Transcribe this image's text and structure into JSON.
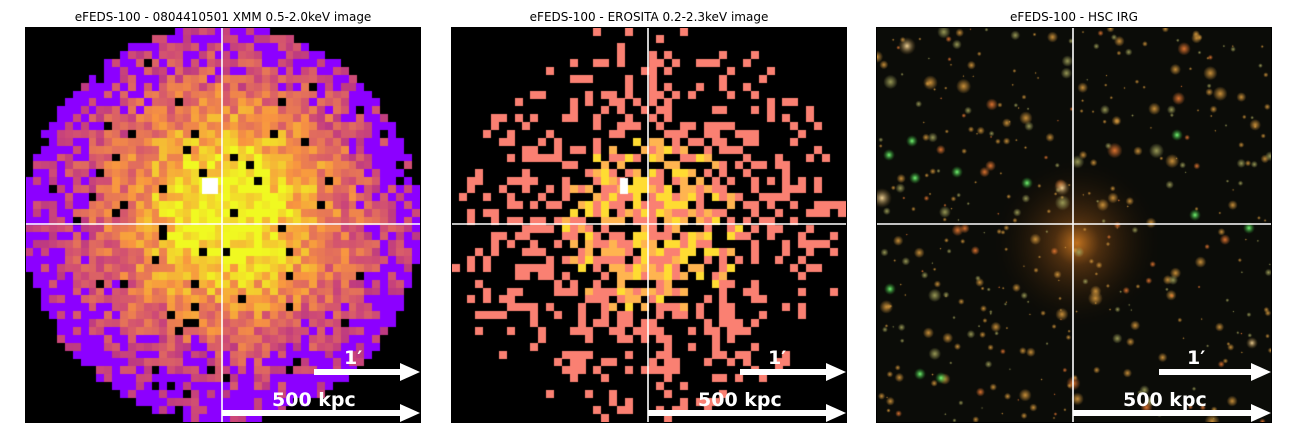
{
  "panels": [
    {
      "title": "eFEDS-100 - 0804410501 XMM 0.5-2.0keV image",
      "scale_angle": "1′",
      "scale_distance": "500 kpc",
      "image": "xmm"
    },
    {
      "title": "eFEDS-100 -  EROSITA 0.2-2.3keV image",
      "scale_angle": "1′",
      "scale_distance": "500 kpc",
      "image": "erosita"
    },
    {
      "title": "eFEDS-100 - HSC IRG",
      "scale_angle": "1′",
      "scale_distance": "500 kpc",
      "image": "hsc"
    }
  ],
  "colors": {
    "crosshair": "#ffffff",
    "background": "#000000",
    "arrow": "#ffffff"
  }
}
